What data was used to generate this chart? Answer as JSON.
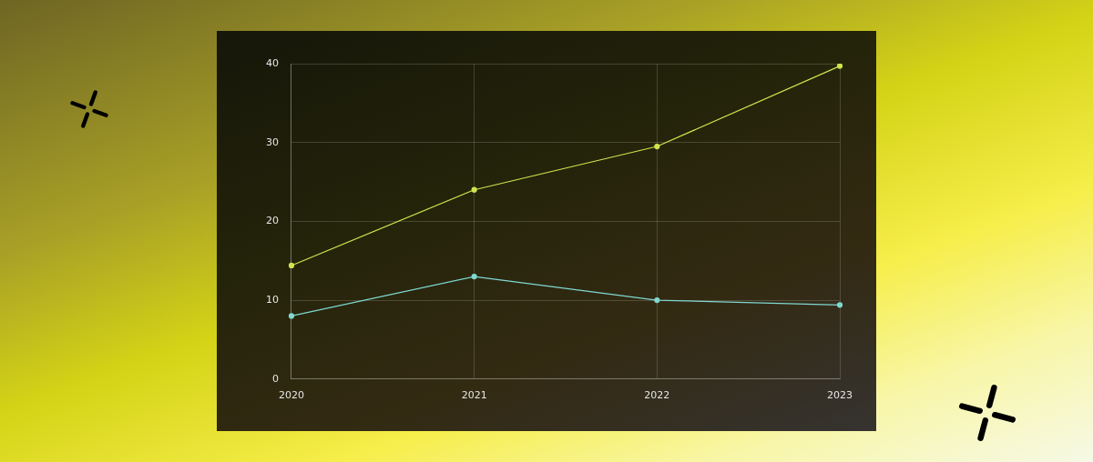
{
  "chart_data": {
    "type": "line",
    "categories": [
      "2020",
      "2021",
      "2022",
      "2023"
    ],
    "series": [
      {
        "color": "#cfe44e",
        "values": [
          14.4,
          24,
          29.5,
          39.7
        ]
      },
      {
        "color": "#7fd8d2",
        "values": [
          8,
          13,
          10,
          9.4
        ]
      }
    ],
    "ylim": [
      0,
      40
    ],
    "yticks": [
      0,
      10,
      20,
      30,
      40
    ],
    "grid": true,
    "marker": "circle",
    "line_style": "solid"
  }
}
